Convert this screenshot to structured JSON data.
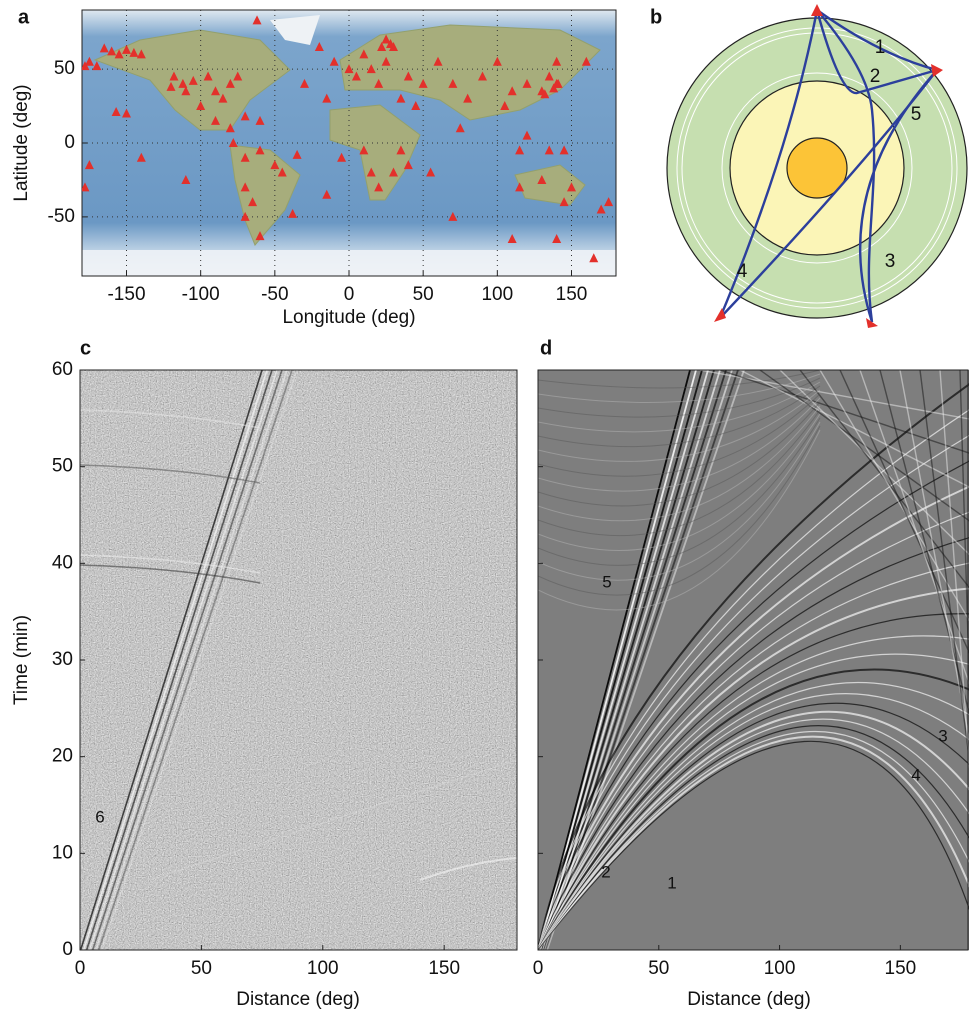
{
  "chart_data": [
    {
      "type": "scatter",
      "panel_label": "a",
      "x_label": "Longitude (deg)",
      "y_label": "Latitude (deg)",
      "xlim": [
        -180,
        180
      ],
      "ylim": [
        -90,
        90
      ],
      "xticks": [
        -150,
        -100,
        -50,
        0,
        50,
        100,
        150
      ],
      "yticks": [
        -50,
        0,
        50
      ],
      "grid": true,
      "color": "#e3302b",
      "x": [
        -160,
        -150,
        -145,
        -155,
        -165,
        -140,
        -178,
        -170,
        -175,
        -118,
        -112,
        -105,
        -110,
        -120,
        -95,
        -90,
        -80,
        -75,
        -85,
        -100,
        -90,
        -80,
        -70,
        -60,
        -78,
        -70,
        -60,
        -50,
        -45,
        -70,
        -65,
        -70,
        -60,
        -35,
        -38,
        -150,
        -157,
        -140,
        -110,
        -175,
        -178,
        -30,
        -20,
        -15,
        -10,
        0,
        5,
        10,
        15,
        20,
        25,
        30,
        25,
        35,
        40,
        45,
        50,
        60,
        70,
        75,
        80,
        90,
        100,
        105,
        110,
        120,
        130,
        140,
        135,
        140,
        160,
        120,
        115,
        135,
        145,
        150,
        130,
        115,
        145,
        170,
        175,
        -5,
        -15,
        10,
        15,
        20,
        30,
        35,
        40,
        55,
        70,
        110,
        140,
        165,
        138,
        141,
        132,
        22,
        28,
        -62
      ],
      "y": [
        62,
        63,
        61,
        60,
        64,
        60,
        52,
        52,
        55,
        45,
        40,
        42,
        35,
        38,
        45,
        35,
        40,
        45,
        30,
        25,
        15,
        10,
        18,
        15,
        0,
        -10,
        -5,
        -15,
        -20,
        -30,
        -40,
        -50,
        -63,
        -8,
        -48,
        20,
        21,
        -10,
        -25,
        -15,
        -30,
        40,
        65,
        30,
        55,
        50,
        45,
        60,
        50,
        40,
        70,
        65,
        55,
        30,
        45,
        25,
        40,
        55,
        40,
        10,
        30,
        45,
        55,
        25,
        35,
        40,
        35,
        40,
        45,
        55,
        55,
        5,
        -5,
        -5,
        -5,
        -30,
        -25,
        -30,
        -40,
        -45,
        -40,
        -10,
        -35,
        -5,
        -20,
        -30,
        -20,
        -5,
        -15,
        -20,
        -50,
        -65,
        -65,
        -78,
        37,
        40,
        33,
        65,
        67,
        83
      ]
    },
    {
      "type": "seismogram",
      "panel_label": "c",
      "x_label": "Distance (deg)",
      "y_label": "Time (min)",
      "xlim": [
        0,
        180
      ],
      "ylim": [
        0,
        60
      ],
      "xticks": [
        0,
        50,
        100,
        150
      ],
      "yticks": [
        0,
        10,
        20,
        30,
        40,
        50,
        60
      ],
      "ytick_labels": true,
      "annotations": [
        "6"
      ]
    },
    {
      "type": "seismogram",
      "panel_label": "d",
      "x_label": "Distance (deg)",
      "xlim": [
        0,
        178
      ],
      "ylim": [
        0,
        60
      ],
      "xticks": [
        0,
        50,
        100,
        150
      ],
      "yticks": [
        0,
        10,
        20,
        30,
        40,
        50,
        60
      ],
      "ytick_labels": false,
      "annotations": [
        "5",
        "2",
        "1",
        "3",
        "4"
      ]
    }
  ],
  "diagram": {
    "panel_label": "b",
    "labels": [
      "1",
      "2",
      "5",
      "3",
      "4"
    ]
  }
}
